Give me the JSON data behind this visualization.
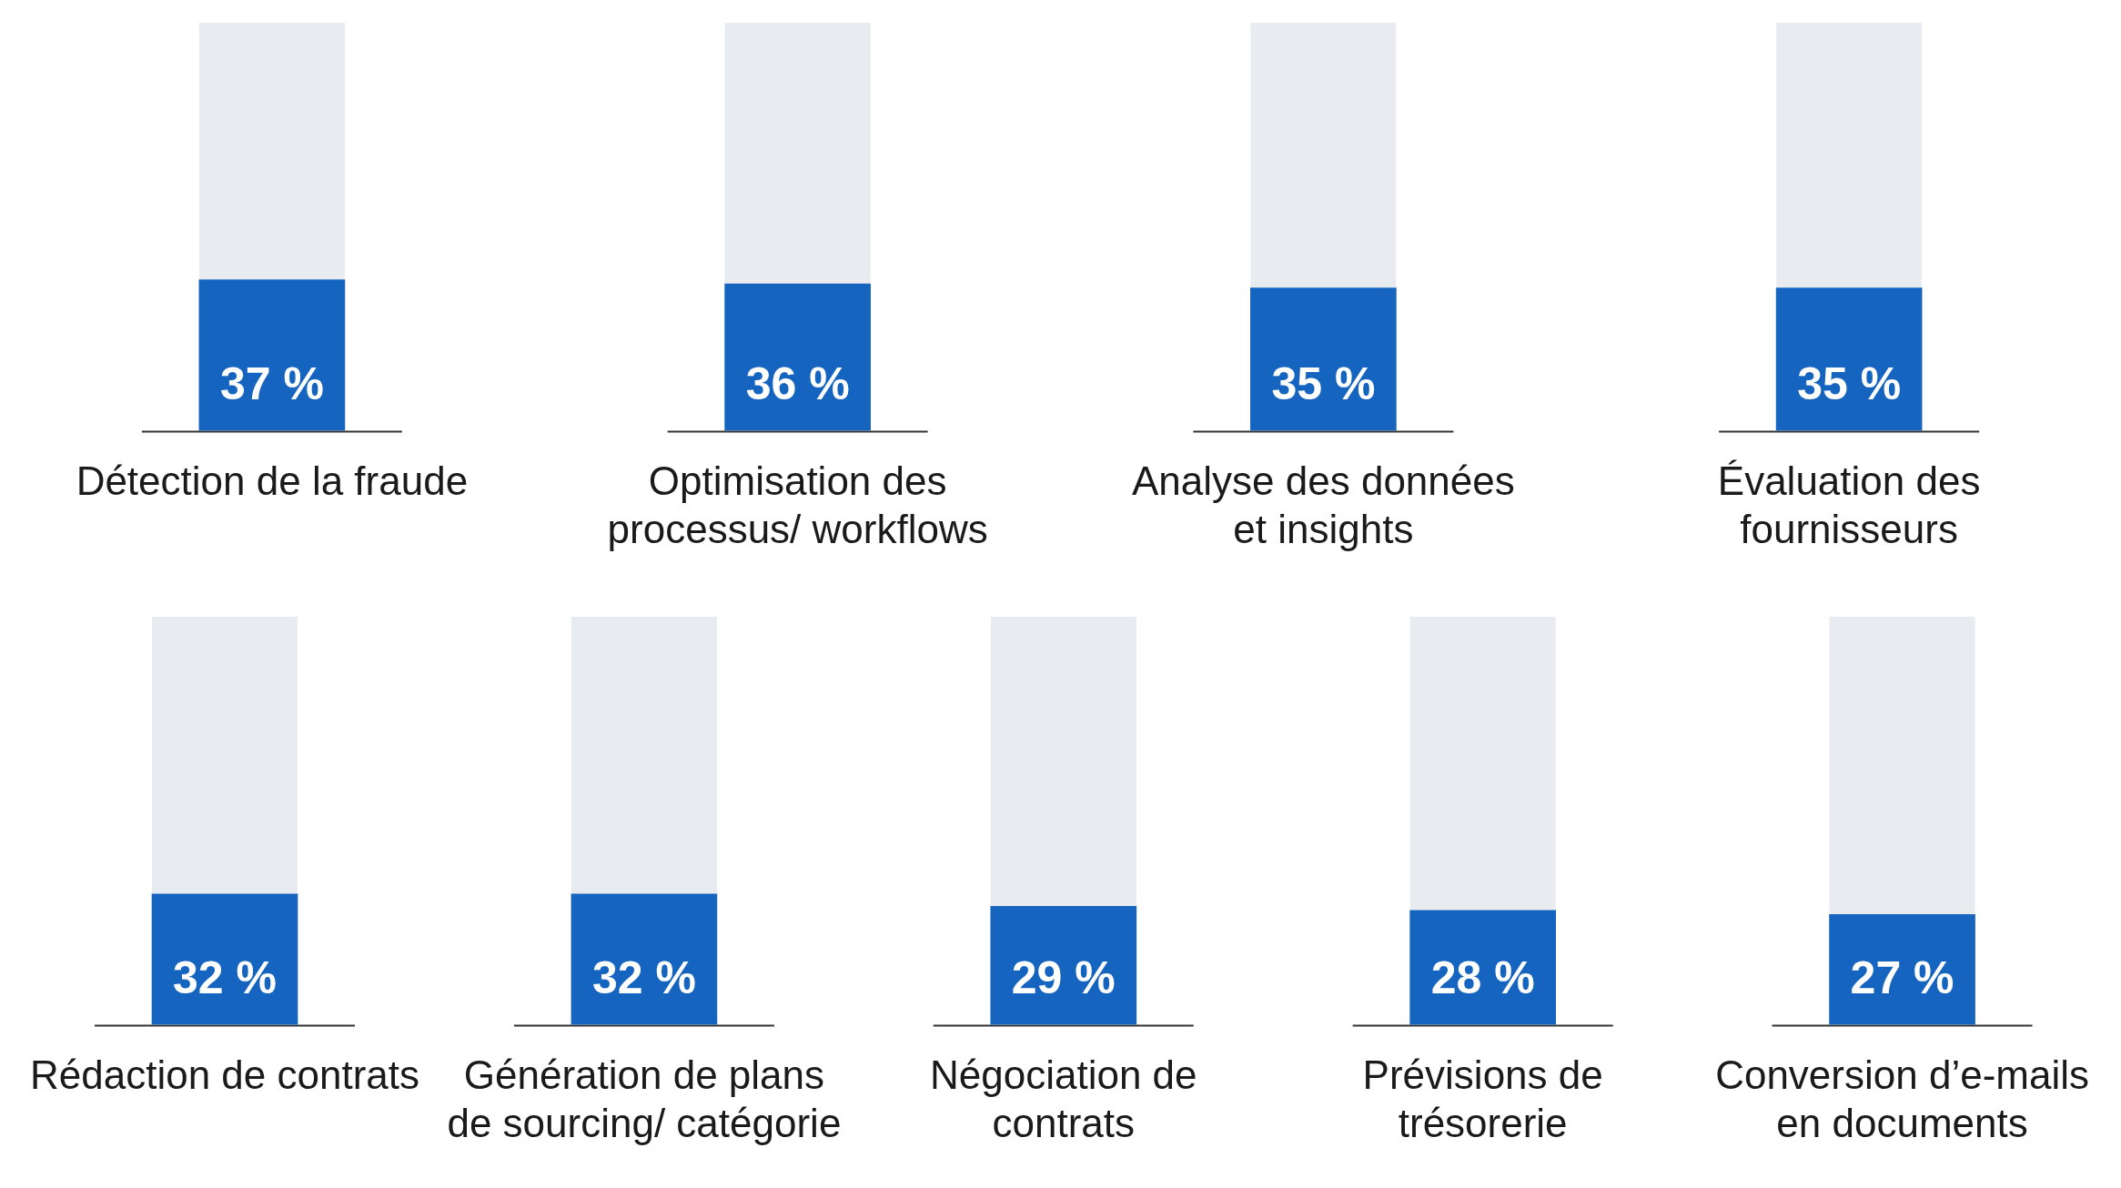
{
  "chart_data": [
    {
      "type": "bar",
      "categories": [
        "Détection de la fraude",
        "Optimisation des processus/ workflows",
        "Analyse des données et insights",
        "Évaluation des fournisseurs"
      ],
      "values": [
        37,
        36,
        35,
        35
      ],
      "value_labels": [
        "37 %",
        "36 %",
        "35 %",
        "35 %"
      ],
      "color": "#1565c0",
      "ylim": [
        0,
        100
      ],
      "tick_labels": "x",
      "grid": false,
      "legend": false
    },
    {
      "type": "bar",
      "categories": [
        "Rédaction de contrats",
        "Génération de plans de sourcing/ catégorie",
        "Négociation de contrats",
        "Prévisions de trésorerie",
        "Conversion d’e-mails en documents"
      ],
      "values": [
        32,
        32,
        29,
        28,
        27
      ],
      "value_labels": [
        "32 %",
        "32 %",
        "29 %",
        "28 %",
        "27 %"
      ],
      "color": "#1565c0",
      "ylim": [
        0,
        100
      ],
      "tick_labels": "x",
      "grid": false,
      "legend": false
    }
  ]
}
